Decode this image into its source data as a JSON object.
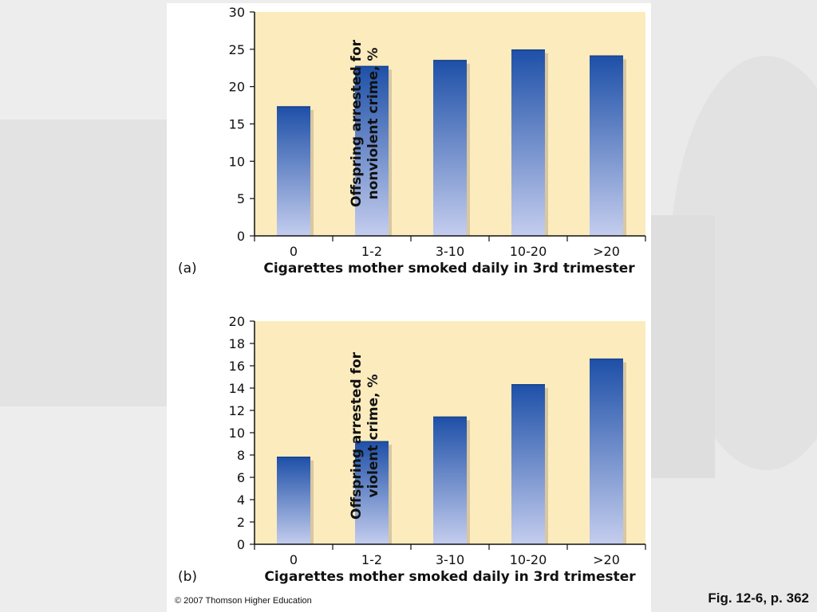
{
  "chart_data": [
    {
      "type": "bar",
      "panel_label": "(a)",
      "categories": [
        "0",
        "1-2",
        "3-10",
        "10-20",
        ">20"
      ],
      "values": [
        17.3,
        22.7,
        23.5,
        24.9,
        24.1
      ],
      "ylim": [
        0,
        30
      ],
      "yticks": [
        "0",
        "5",
        "10",
        "15",
        "20",
        "25",
        "30"
      ],
      "ylabel_line1": "Offspring arrested for",
      "ylabel_line2": "nonviolent crime, %",
      "xlabel": "Cigarettes mother smoked daily in 3rd trimester",
      "colors": {
        "plot_bg": "#fcebbd",
        "bar_top": "#1e50a8",
        "bar_bottom": "#c4cdee",
        "shadow": "#d8c7a0"
      }
    },
    {
      "type": "bar",
      "panel_label": "(b)",
      "categories": [
        "0",
        "1-2",
        "3-10",
        "10-20",
        ">20"
      ],
      "values": [
        7.8,
        9.2,
        11.4,
        14.3,
        16.6
      ],
      "ylim": [
        0,
        20
      ],
      "yticks": [
        "0",
        "2",
        "4",
        "6",
        "8",
        "10",
        "12",
        "14",
        "16",
        "18",
        "20"
      ],
      "ylabel_line1": "Offspring arrested for",
      "ylabel_line2": "violent crime, %",
      "xlabel": "Cigarettes mother smoked daily in 3rd trimester",
      "colors": {
        "plot_bg": "#fcebbd",
        "bar_top": "#1e50a8",
        "bar_bottom": "#c4cdee",
        "shadow": "#d8c7a0"
      }
    }
  ],
  "footer": {
    "copyright": "© 2007 Thomson Higher Education",
    "figure_ref": "Fig. 12-6, p. 362"
  }
}
